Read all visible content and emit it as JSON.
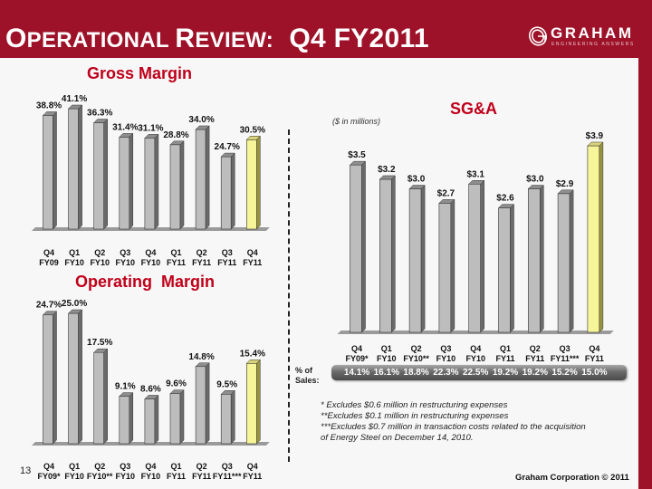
{
  "header": {
    "title_parts": [
      {
        "big": "O",
        "small": "PERATIONAL "
      },
      {
        "big": "R",
        "small": "EVIEW:"
      }
    ],
    "title_tail": "Q4 FY2011",
    "logo_name": "GRAHAM",
    "logo_tagline": "ENGINEERING ANSWERS"
  },
  "colors": {
    "brand_red": "#9e1229",
    "section_title_red": "#c0001a",
    "bar_gray": "#bdbdbd",
    "bar_highlight": "#f7f59a"
  },
  "chart_data": [
    {
      "type": "bar",
      "title": "Gross Margin",
      "categories": [
        "Q4 FY09",
        "Q1 FY10",
        "Q2 FY10",
        "Q3 FY10",
        "Q4 FY10",
        "Q1 FY11",
        "Q2 FY11",
        "Q3 FY11",
        "Q4 FY11"
      ],
      "category_lines": [
        [
          "Q4",
          "FY09"
        ],
        [
          "Q1",
          "FY10"
        ],
        [
          "Q2",
          "FY10"
        ],
        [
          "Q3",
          "FY10"
        ],
        [
          "Q4",
          "FY10"
        ],
        [
          "Q1",
          "FY11"
        ],
        [
          "Q2",
          "FY11"
        ],
        [
          "Q3",
          "FY11"
        ],
        [
          "Q4",
          "FY11"
        ]
      ],
      "values": [
        38.8,
        41.1,
        36.3,
        31.4,
        31.1,
        28.8,
        34.0,
        24.7,
        30.5
      ],
      "labels": [
        "38.8%",
        "41.1%",
        "36.3%",
        "31.4%",
        "31.1%",
        "28.8%",
        "34.0%",
        "24.7%",
        "30.5%"
      ],
      "highlight_index": 8,
      "xlabel": "",
      "ylabel": "",
      "ylim": [
        0,
        41.1
      ],
      "grid": false,
      "legend": "none"
    },
    {
      "type": "bar",
      "title": "Operating  Margin",
      "categories": [
        "Q4 FY09*",
        "Q1 FY10",
        "Q2 FY10**",
        "Q3 FY10",
        "Q4 FY10",
        "Q1 FY11",
        "Q2 FY11",
        "Q3 FY11***",
        "Q4 FY11"
      ],
      "category_lines": [
        [
          "Q4",
          "FY09*"
        ],
        [
          "Q1",
          "FY10"
        ],
        [
          "Q2",
          "FY10**"
        ],
        [
          "Q3",
          "FY10"
        ],
        [
          "Q4",
          "FY10"
        ],
        [
          "Q1",
          "FY11"
        ],
        [
          "Q2",
          "FY11"
        ],
        [
          "Q3",
          "FY11***"
        ],
        [
          "Q4",
          "FY11"
        ]
      ],
      "values": [
        24.7,
        25.0,
        17.5,
        9.1,
        8.6,
        9.6,
        14.8,
        9.5,
        15.4
      ],
      "labels": [
        "24.7%",
        "25.0%",
        "17.5%",
        "9.1%",
        "8.6%",
        "9.6%",
        "14.8%",
        "9.5%",
        "15.4%"
      ],
      "highlight_index": 8,
      "xlabel": "",
      "ylabel": "",
      "ylim": [
        0,
        25.0
      ],
      "grid": false,
      "legend": "none"
    },
    {
      "type": "bar",
      "title": "SG&A",
      "subtitle": "($ in millions)",
      "categories": [
        "Q4 FY09*",
        "Q1 FY10",
        "Q2 FY10**",
        "Q3 FY10",
        "Q4 FY10",
        "Q1 FY11",
        "Q2 FY11",
        "Q3 FY11***",
        "Q4 FY11"
      ],
      "category_lines": [
        [
          "Q4",
          "FY09*"
        ],
        [
          "Q1",
          "FY10"
        ],
        [
          "Q2",
          "FY10**"
        ],
        [
          "Q3",
          "FY10"
        ],
        [
          "Q4",
          "FY10"
        ],
        [
          "Q1",
          "FY11"
        ],
        [
          "Q2",
          "FY11"
        ],
        [
          "Q3",
          "FY11***"
        ],
        [
          "Q4",
          "FY11"
        ]
      ],
      "values": [
        3.5,
        3.2,
        3.0,
        2.7,
        3.1,
        2.6,
        3.0,
        2.9,
        3.9
      ],
      "labels": [
        "$3.5",
        "$3.2",
        "$3.0",
        "$2.7",
        "$3.1",
        "$2.6",
        "$3.0",
        "$2.9",
        "$3.9"
      ],
      "highlight_index": 8,
      "xlabel": "",
      "ylabel": "",
      "ylim": [
        0,
        3.9
      ],
      "grid": false,
      "legend": "none",
      "pct_of_sales_label": [
        "% of",
        "Sales:"
      ],
      "pct_of_sales": [
        "14.1%",
        "16.1%",
        "18.8%",
        "22.3%",
        "22.5%",
        "19.2%",
        "19.2%",
        "15.2%",
        "15.0%"
      ]
    }
  ],
  "footnotes": [
    "* Excludes $0.6 million in restructuring expenses",
    "**Excludes $0.1 million in restructuring expenses",
    "***Excludes $0.7 million in transaction costs related to the acquisition",
    "of Energy Steel on December 14, 2010."
  ],
  "footer": {
    "page_number": "13",
    "copyright": "Graham Corporation © 2011"
  }
}
